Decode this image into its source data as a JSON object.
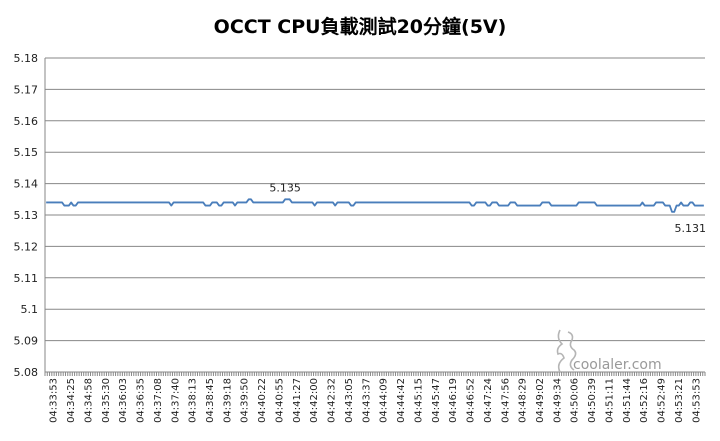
{
  "chart_data": {
    "type": "line",
    "title": "OCCT CPU負載測試20分鐘(5V)",
    "xlabel": "",
    "ylabel": "",
    "ylim": [
      5.08,
      5.18
    ],
    "yticks": [
      "5.08",
      "5.09",
      "5.1",
      "5.11",
      "5.12",
      "5.13",
      "5.14",
      "5.15",
      "5.16",
      "5.17",
      "5.18"
    ],
    "grid": true,
    "legend": "none",
    "line_color": "#4a7ebb",
    "x_tick_labels": [
      "04:33:53",
      "04:34:25",
      "04:34:58",
      "04:35:30",
      "04:36:03",
      "04:36:35",
      "04:37:08",
      "04:37:40",
      "04:38:13",
      "04:38:45",
      "04:39:18",
      "04:39:50",
      "04:40:22",
      "04:40:55",
      "04:41:27",
      "04:42:00",
      "04:42:32",
      "04:43:05",
      "04:43:37",
      "04:44:09",
      "04:44:42",
      "04:45:15",
      "04:45:47",
      "04:46:19",
      "04:46:52",
      "04:47:24",
      "04:47:56",
      "04:48:29",
      "04:49:02",
      "04:49:34",
      "04:50:06",
      "04:50:39",
      "04:51:11",
      "04:51:44",
      "04:52:16",
      "04:52:49",
      "04:53:21",
      "04:53:53"
    ],
    "series": [
      {
        "values": [
          5.134,
          5.134,
          5.134,
          5.134,
          5.134,
          5.134,
          5.134,
          5.134,
          5.133,
          5.133,
          5.133,
          5.134,
          5.133,
          5.133,
          5.134,
          5.134,
          5.134,
          5.134,
          5.134,
          5.134,
          5.134,
          5.134,
          5.134,
          5.134,
          5.134,
          5.134,
          5.134,
          5.134,
          5.134,
          5.134,
          5.134,
          5.134,
          5.134,
          5.134,
          5.134,
          5.134,
          5.134,
          5.134,
          5.134,
          5.134,
          5.134,
          5.134,
          5.134,
          5.134,
          5.134,
          5.134,
          5.134,
          5.134,
          5.134,
          5.134,
          5.134,
          5.134,
          5.134,
          5.134,
          5.134,
          5.133,
          5.134,
          5.134,
          5.134,
          5.134,
          5.134,
          5.134,
          5.134,
          5.134,
          5.134,
          5.134,
          5.134,
          5.134,
          5.134,
          5.134,
          5.133,
          5.133,
          5.133,
          5.134,
          5.134,
          5.134,
          5.133,
          5.133,
          5.134,
          5.134,
          5.134,
          5.134,
          5.134,
          5.133,
          5.134,
          5.134,
          5.134,
          5.134,
          5.134,
          5.135,
          5.135,
          5.134,
          5.134,
          5.134,
          5.134,
          5.134,
          5.134,
          5.134,
          5.134,
          5.134,
          5.134,
          5.134,
          5.134,
          5.134,
          5.134,
          5.135,
          5.135,
          5.135,
          5.134,
          5.134,
          5.134,
          5.134,
          5.134,
          5.134,
          5.134,
          5.134,
          5.134,
          5.134,
          5.133,
          5.134,
          5.134,
          5.134,
          5.134,
          5.134,
          5.134,
          5.134,
          5.134,
          5.133,
          5.134,
          5.134,
          5.134,
          5.134,
          5.134,
          5.134,
          5.133,
          5.133,
          5.134,
          5.134,
          5.134,
          5.134,
          5.134,
          5.134,
          5.134,
          5.134,
          5.134,
          5.134,
          5.134,
          5.134,
          5.134,
          5.134,
          5.134,
          5.134,
          5.134,
          5.134,
          5.134,
          5.134,
          5.134,
          5.134,
          5.134,
          5.134,
          5.134,
          5.134,
          5.134,
          5.134,
          5.134,
          5.134,
          5.134,
          5.134,
          5.134,
          5.134,
          5.134,
          5.134,
          5.134,
          5.134,
          5.134,
          5.134,
          5.134,
          5.134,
          5.134,
          5.134,
          5.134,
          5.134,
          5.134,
          5.134,
          5.134,
          5.134,
          5.134,
          5.133,
          5.133,
          5.134,
          5.134,
          5.134,
          5.134,
          5.134,
          5.133,
          5.133,
          5.134,
          5.134,
          5.134,
          5.133,
          5.133,
          5.133,
          5.133,
          5.133,
          5.134,
          5.134,
          5.134,
          5.133,
          5.133,
          5.133,
          5.133,
          5.133,
          5.133,
          5.133,
          5.133,
          5.133,
          5.133,
          5.133,
          5.134,
          5.134,
          5.134,
          5.134,
          5.133,
          5.133,
          5.133,
          5.133,
          5.133,
          5.133,
          5.133,
          5.133,
          5.133,
          5.133,
          5.133,
          5.133,
          5.134,
          5.134,
          5.134,
          5.134,
          5.134,
          5.134,
          5.134,
          5.134,
          5.133,
          5.133,
          5.133,
          5.133,
          5.133,
          5.133,
          5.133,
          5.133,
          5.133,
          5.133,
          5.133,
          5.133,
          5.133,
          5.133,
          5.133,
          5.133,
          5.133,
          5.133,
          5.133,
          5.133,
          5.134,
          5.133,
          5.133,
          5.133,
          5.133,
          5.133,
          5.134,
          5.134,
          5.134,
          5.134,
          5.133,
          5.133,
          5.133,
          5.131,
          5.131,
          5.133,
          5.133,
          5.134,
          5.133,
          5.133,
          5.133,
          5.134,
          5.134,
          5.133,
          5.133,
          5.133,
          5.133,
          5.133
        ]
      }
    ],
    "annotations": [
      {
        "text": "5.135",
        "x_index": 105,
        "value": 5.135,
        "position": "above"
      },
      {
        "text": "5.131",
        "x_index": 283,
        "value": 5.131,
        "position": "below"
      }
    ]
  },
  "watermark": {
    "text": "coolaler.com"
  }
}
